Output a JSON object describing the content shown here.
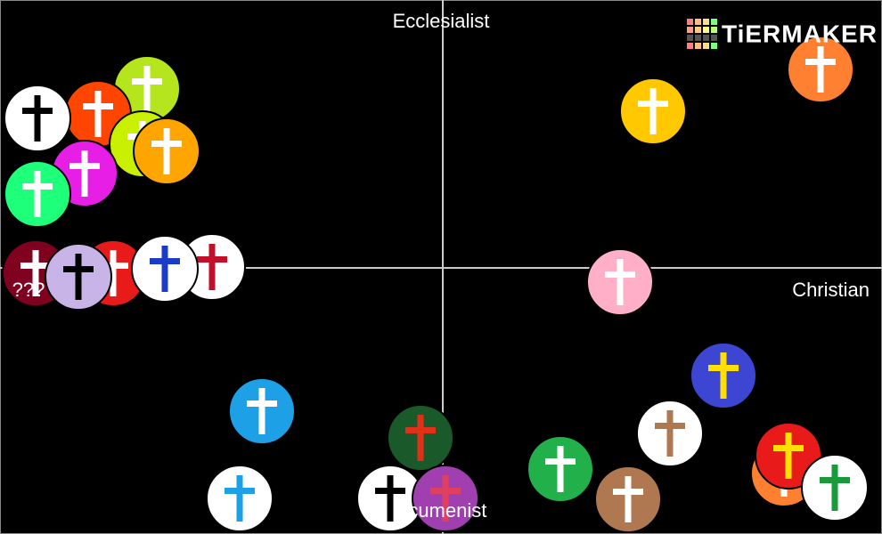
{
  "axes": {
    "top": "Ecclesialist",
    "right": "Christian",
    "bottom": "Ecumenist"
  },
  "unknown_label": "???",
  "logo": "TiERMAKER"
}
